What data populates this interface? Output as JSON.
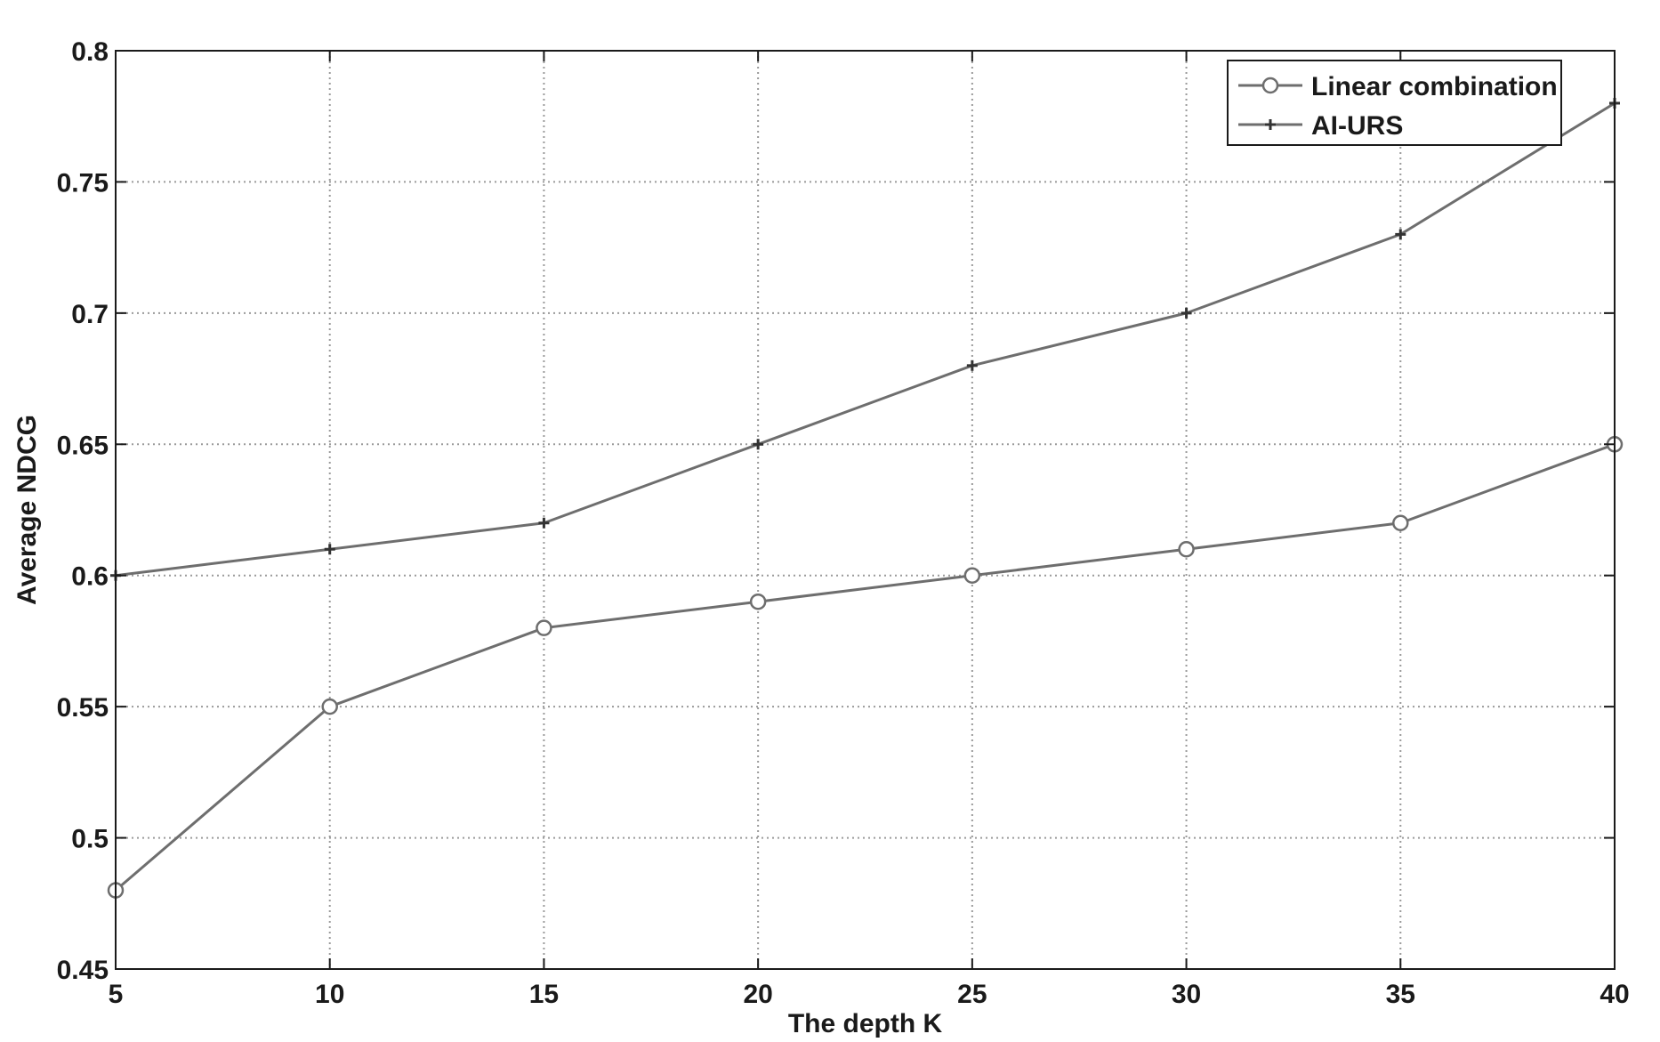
{
  "chart_data": {
    "type": "line",
    "xlabel": "The depth K",
    "ylabel": "Average NDCG",
    "x": [
      5,
      10,
      15,
      20,
      25,
      30,
      35,
      40
    ],
    "xlim": [
      5,
      40
    ],
    "ylim": [
      0.45,
      0.8
    ],
    "xticks": [
      "5",
      "10",
      "15",
      "20",
      "25",
      "30",
      "35",
      "40"
    ],
    "yticks": [
      "0.45",
      "0.5",
      "0.55",
      "0.6",
      "0.65",
      "0.7",
      "0.75",
      "0.8"
    ],
    "grid": true,
    "legend_position": "top-right",
    "series": [
      {
        "name": "Linear combination",
        "marker": "circle",
        "values": [
          0.48,
          0.55,
          0.58,
          0.59,
          0.6,
          0.61,
          0.62,
          0.65
        ]
      },
      {
        "name": "AI-URS",
        "marker": "plus",
        "values": [
          0.6,
          0.61,
          0.62,
          0.65,
          0.68,
          0.7,
          0.73,
          0.78
        ]
      }
    ],
    "colors": {
      "line": "#6e6e6e",
      "axis": "#1a1a1a",
      "grid": "#9a9a9a"
    }
  }
}
